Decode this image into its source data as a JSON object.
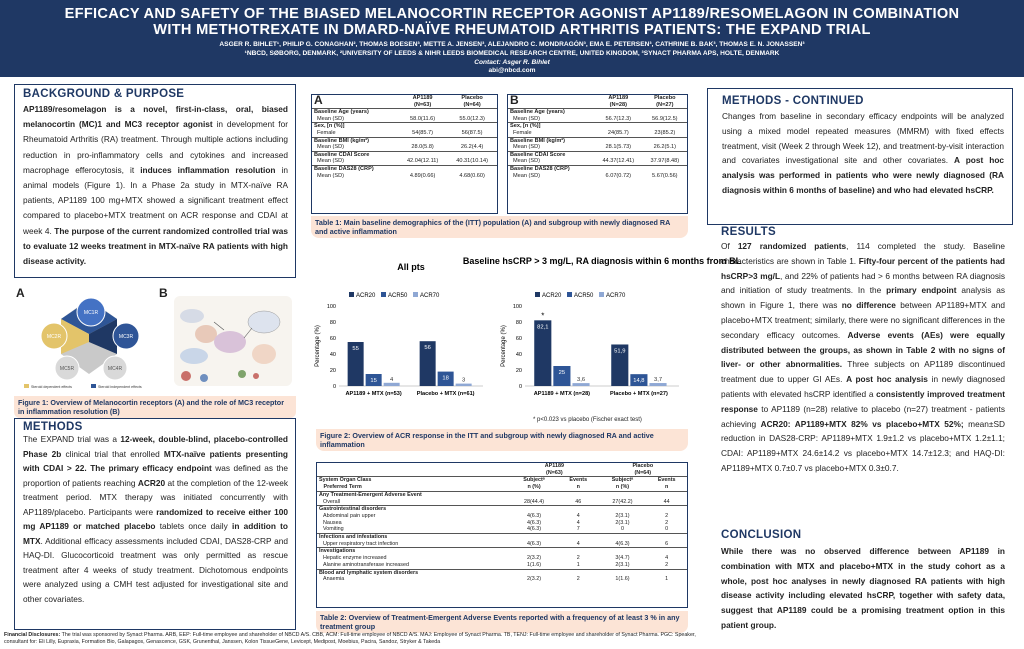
{
  "header": {
    "title_line1": "EFFICACY AND SAFETY OF THE BIASED MELANOCORTIN RECEPTOR AGONIST AP1189/RESOMELAGON IN COMBINATION",
    "title_line2": "WITH METHOTREXATE IN DMARD-NAÏVE RHEUMATOID ARTHRITIS PATIENTS: THE EXPAND TRIAL",
    "authors": "ASGER R. BIHLET¹, PHILIP G. CONAGHAN², THOMAS BOESEN³, METTE A. JENSEN³, ALEJANDRO C. MONDRAGÓN³, EMA E. PETERSEN³, CATHRINE B. BAK³, THOMAS E. N. JONASSEN³",
    "affiliations": "¹NBCD, SØBORG, DENMARK, ²UNIVERSITY OF LEEDS & NIHR LEEDS BIOMEDICAL RESEARCH CENTRE, UNITED KINGDOM, ³SYNACT PHARMA APS, HOLTE, DENMARK",
    "contact": "Contact: Asger R. Bihlet",
    "email": "abi@nbcd.com"
  },
  "background": {
    "heading": "BACKGROUND & PURPOSE",
    "p1_a": "AP1189/resomelagon is a novel, first-in-class, oral, biased melanocortin (MC)1 and MC3 receptor agonist",
    "p1_b": " in development for Rheumatoid Arthritis (RA) treatment. Through multiple actions including reduction in pro-inflammatory cells and cytokines and increased macrophage efferocytosis, it ",
    "p1_c": "induces inflammation resolution",
    "p1_d": " in animal models (Figure 1). In a Phase 2a study in MTX-naïve RA patients, AP1189 100 mg+MTX showed a significant treatment effect compared to placebo+MTX treatment on ACR response and CDAI at week 4. ",
    "p1_e": "The purpose of the current randomized controlled trial was to evaluate 12 weeks treatment in MTX-naïve RA patients with high disease activity."
  },
  "figure1": {
    "label_a": "A",
    "label_b": "B",
    "mc1": "MC1R",
    "mc3": "MC3R",
    "mc2": "MC2R",
    "mc4": "MC4R",
    "mc5": "MC5R",
    "legend1": "Steroid dependent effects",
    "legend2": "Steroid independent effects",
    "caption": "Figure 1: Overview of Melanocortin receptors (A) and the role of MC3 receptor in inflammation resolution (B)"
  },
  "methods": {
    "heading": "METHODS",
    "t1": "The EXPAND trial was a ",
    "b1": "12-week, double-blind, placebo-controlled Phase 2b",
    "t2": " clinical trial that enrolled ",
    "b2": "MTX-naïve patients presenting with CDAI > 22.",
    "b3": " The primary efficacy endpoint",
    "t3": " was defined as the proportion of patients reaching ",
    "b4": "ACR20",
    "t4": " at the completion of the 12-week treatment period. MTX therapy was initiated concurrently with AP1189/placebo. Participants were ",
    "b5": "randomized to receive either 100 mg AP1189 or matched placebo",
    "t5": " tablets once daily ",
    "b6": "in addition to MTX",
    "t6": ". Additional efficacy assessments included CDAI, DAS28-CRP and HAQ-DI. Glucocorticoid treatment was only permitted as rescue treatment after 4 weeks of study treatment. Dichotomous endpoints were analyzed using a CMH test adjusted for investigational site and other covariates."
  },
  "table1": {
    "caption": "Table 1: Main baseline demographics of the (ITT) population (A) and subgroup with newly diagnosed RA and active inflammation",
    "a": {
      "letter": "A",
      "col1": "AP1189",
      "col1n": "(N=63)",
      "col2": "Placebo",
      "col2n": "(N=64)",
      "rows": [
        {
          "h": "Baseline Age (years)",
          "l": "Mean (SD)",
          "v1": "58.0(11.6)",
          "v2": "55.0(12.3)"
        },
        {
          "h": "Sex, [n (%)]",
          "l": "Female",
          "v1": "54(85.7)",
          "v2": "56(87.5)"
        },
        {
          "h": "Baseline BMI (kg/m²)",
          "l": "Mean (SD)",
          "v1": "28.0(5.8)",
          "v2": "26.2(4.4)"
        },
        {
          "h": "Baseline CDAI Score",
          "l": "Mean (SD)",
          "v1": "42.04(12.11)",
          "v2": "40.31(10.14)"
        },
        {
          "h": "Baseline DAS28 (CRP)",
          "l": "Mean (SD)",
          "v1": "4.89(0.66)",
          "v2": "4.68(0.60)"
        }
      ]
    },
    "b": {
      "letter": "B",
      "col1": "AP1189",
      "col1n": "(N=28)",
      "col2": "Placebo",
      "col2n": "(N=27)",
      "rows": [
        {
          "h": "Baseline Age (years)",
          "l": "Mean (SD)",
          "v1": "56.7(12.3)",
          "v2": "56.9(12.5)"
        },
        {
          "h": "Sex, [n (%)]",
          "l": "Female",
          "v1": "24(85.7)",
          "v2": "23(85.2)"
        },
        {
          "h": "Baseline BMI (kg/m²)",
          "l": "Mean (SD)",
          "v1": "28.1(5.73)",
          "v2": "26.2(5.1)"
        },
        {
          "h": "Baseline CDAI Score",
          "l": "Mean (SD)",
          "v1": "44.37(12.41)",
          "v2": "37.97(8.48)"
        },
        {
          "h": "Baseline DAS28 (CRP)",
          "l": "Mean (SD)",
          "v1": "6.07(0.72)",
          "v2": "5.67(0.56)"
        }
      ]
    }
  },
  "figure2": {
    "caption": "Figure 2: Overview of ACR response in the ITT and subgroup with newly diagnosed RA and active inflammation",
    "footnote": "p<0.023 vs placebo (Fischer exact test)",
    "star": "*"
  },
  "chart_data": [
    {
      "type": "bar",
      "title": "All pts",
      "ylabel": "Percentage (%)",
      "ylim": [
        0,
        100
      ],
      "yticks": [
        0,
        20,
        40,
        60,
        80,
        100
      ],
      "categories": [
        "AP1189 + MTX (n=53)",
        "Placebo + MTX (n=61)"
      ],
      "series": [
        {
          "name": "ACR20",
          "color": "#1f3864",
          "values": [
            55,
            56
          ]
        },
        {
          "name": "ACR50",
          "color": "#2e5596",
          "values": [
            15,
            18
          ]
        },
        {
          "name": "ACR70",
          "color": "#8fa8d4",
          "values": [
            4,
            3
          ]
        }
      ],
      "data_labels": [
        [
          "55",
          "15",
          "4"
        ],
        [
          "56",
          "18",
          "3"
        ]
      ]
    },
    {
      "type": "bar",
      "title": "Baseline hsCRP > 3 mg/L, RA diagnosis within 6 months from BL",
      "ylabel": "Percentage (%)",
      "ylim": [
        0,
        100
      ],
      "yticks": [
        0,
        20,
        40,
        60,
        80,
        100
      ],
      "categories": [
        "AP1189 + MTX (n=28)",
        "Placebo + MTX (n=27)"
      ],
      "series": [
        {
          "name": "ACR20",
          "color": "#1f3864",
          "values": [
            82.1,
            51.9
          ]
        },
        {
          "name": "ACR50",
          "color": "#2e5596",
          "values": [
            25,
            14.8
          ]
        },
        {
          "name": "ACR70",
          "color": "#8fa8d4",
          "values": [
            3.6,
            3.7
          ]
        }
      ],
      "data_labels": [
        [
          "82,1",
          "25",
          "3,6"
        ],
        [
          "51,9",
          "14,8",
          "3,7"
        ]
      ]
    }
  ],
  "table2": {
    "caption": "Table 2: Overview of Treatment-Emergent Adverse Events reported with a frequency of at least 3 % in any treatment group",
    "col_a": "AP1189",
    "col_a_n": "(N=63)",
    "col_p": "Placebo",
    "col_p_n": "(N=64)",
    "soc": "System Organ Class",
    "pt": "Preferred Term",
    "subj": "Subject",
    "n_pct": "n (%)",
    "events": "Events",
    "events_n": "n",
    "any": "Any Treatment-Emergent Adverse Event",
    "rows": [
      {
        "k": "sub",
        "l": "Overall",
        "a": "28(44.4)",
        "ae": "46",
        "p": "27(42.2)",
        "pe": "44"
      },
      {
        "k": "grp",
        "l": "Gastrointestinal disorders",
        "a": "",
        "ae": "",
        "p": "",
        "pe": ""
      },
      {
        "k": "sub",
        "l": "Abdominal pain upper",
        "a": "4(6.3)",
        "ae": "4",
        "p": "2(3.1)",
        "pe": "2"
      },
      {
        "k": "sub",
        "l": "Nausea",
        "a": "4(6.3)",
        "ae": "4",
        "p": "2(3.1)",
        "pe": "2"
      },
      {
        "k": "sub",
        "l": "Vomiting",
        "a": "4(6.3)",
        "ae": "7",
        "p": "0",
        "pe": "0"
      },
      {
        "k": "grp",
        "l": "Infections and infestations",
        "a": "",
        "ae": "",
        "p": "",
        "pe": ""
      },
      {
        "k": "sub",
        "l": "Upper respiratory tract infection",
        "a": "4(6.3)",
        "ae": "4",
        "p": "4(6.3)",
        "pe": "6"
      },
      {
        "k": "grp",
        "l": "Investigations",
        "a": "",
        "ae": "",
        "p": "",
        "pe": ""
      },
      {
        "k": "sub",
        "l": "Hepatic enzyme increased",
        "a": "2(3.2)",
        "ae": "2",
        "p": "3(4.7)",
        "pe": "4"
      },
      {
        "k": "sub",
        "l": "Alanine aminotransferase increased",
        "a": "1(1.6)",
        "ae": "1",
        "p": "2(3.1)",
        "pe": "2"
      },
      {
        "k": "grp",
        "l": "Blood and lymphatic system disorders",
        "a": "",
        "ae": "",
        "p": "",
        "pe": ""
      },
      {
        "k": "sub",
        "l": "Anaemia",
        "a": "2(3.2)",
        "ae": "2",
        "p": "1(1.6)",
        "pe": "1"
      }
    ]
  },
  "methods_cont": {
    "heading": "METHODS - CONTINUED",
    "t1": "Changes from baseline in secondary efficacy endpoints will be analyzed using a mixed model repeated measures (MMRM) with fixed effects treatment, visit (Week 2 through Week 12), and treatment-by-visit interaction and covariates investigational site and other covariates. ",
    "b1": "A post hoc analysis was performed in patients who were newly diagnosed (RA diagnosis within 6 months of baseline) and who had elevated hsCRP."
  },
  "results": {
    "heading": "RESULTS",
    "t1": "Of ",
    "b1": "127 randomized patients",
    "t2": ", 114 completed the study. Baseline characteristics are shown in Table 1. ",
    "b2": "Fifty-four percent of the patients had hsCRP>3 mg/L",
    "t3": ", and 22% of patients had > 6 months between RA diagnosis and initiation of study treatments. In the ",
    "b3": "primary endpoint",
    "t4": " analysis as shown in Figure 1, there was ",
    "b4": "no difference",
    "t5": " between AP1189+MTX and placebo+MTX treatment; similarly, there were no significant differences in the secondary efficacy outcomes. ",
    "b5": "Adverse events (AEs) were equally distributed between the groups, as shown in Table 2 with no signs of liver- or other abnormalities.",
    "t6": " Three subjects on AP1189 discontinued treatment due to upper GI AEs. ",
    "b6": "A post hoc analysis",
    "t7": " in newly diagnosed patients with elevated hsCRP identified a ",
    "b7": "consistently improved treatment response",
    "t8": " to AP1189 (n=28) relative to placebo (n=27) treatment - patients achieving ",
    "b8": "ACR20: AP1189+MTX 82% vs placebo+MTX 52%;",
    "t9": " mean±SD reduction in DAS28-CRP: AP1189+MTX 1.9±1.2 vs placebo+MTX 1.2±1.1; CDAI: AP1189+MTX 24.6±14.2 vs placebo+MTX 14.7±12.3; and HAQ-DI: AP1189+MTX 0.7±0.7 vs placebo+MTX 0.3±0.7."
  },
  "conclusion": {
    "heading": "CONCLUSION",
    "text": "While there was no observed difference between AP1189 in combination with MTX and placebo+MTX in the study cohort as a whole, post hoc analyses in newly diagnosed RA patients with high disease activity including elevated hsCRP, together with safety data, suggest that AP1189 could be a promising treatment option in this patient group."
  },
  "disclosures": {
    "label": "Financial Disclosures:",
    "text": " The trial was sponsored by Synact Pharma. ARB, EEP: Full-time employee and shareholder of NBCD A/S. CBB, ACM: Full-time employee of NBCD A/S. MAJ: Employee of Synact Pharma. TB, TENJ: Full-time employee and shareholder of Synact Pharma. PGC: Speaker, consultant for: Eli Lilly, Eupraxia, Formation Bio, Galapagos, Genascence, GSK, Grunenthal, Janssen, Kolon TissueGene, Levicept, Medipost, Moebius, Pacira, Sandoz, Stryker & Takeda"
  }
}
